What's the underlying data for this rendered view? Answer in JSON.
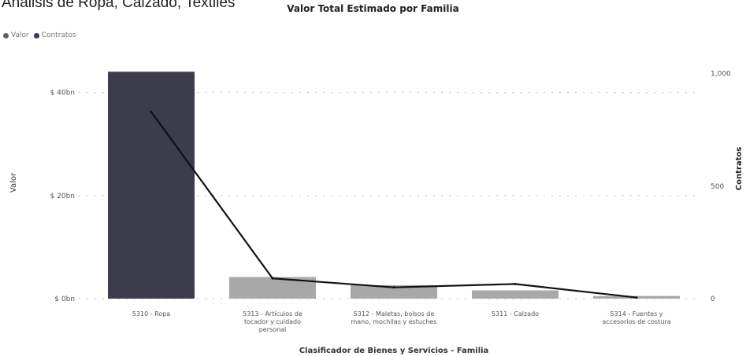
{
  "page": {
    "header_text": "Análisis de Ropa, Calzado, Textiles"
  },
  "legend": [
    {
      "label": "Valor",
      "color": "#5f5f5f"
    },
    {
      "label": "Contratos",
      "color": "#3a3a56"
    }
  ],
  "colors": {
    "bar_main": "#3c3c4c",
    "bar_other": "#a8a8a8",
    "line": "#111111",
    "grid": "#bdbdbd",
    "axis_text": "#555555"
  },
  "chart_data": {
    "type": "bar",
    "title": "Valor Total Estimado por Familia",
    "xlabel": "Clasificador de Bienes y Servicios - Familia",
    "ylabel": "Valor",
    "y2label": "Contratos",
    "categories": [
      [
        "5310 - Ropa"
      ],
      [
        "5313 - Artículos de",
        "tocador y cuidado",
        "personal"
      ],
      [
        "5312 - Maletas, bolsos de",
        "mano, mochilas y estuches"
      ],
      [
        "5311 - Calzado"
      ],
      [
        "5314 - Fuentes y",
        "accesorios de costura"
      ]
    ],
    "series": [
      {
        "name": "Valor",
        "type": "bar",
        "axis": "left",
        "values": [
          44,
          4.2,
          2.6,
          1.6,
          0.5
        ]
      },
      {
        "name": "Contratos",
        "type": "line",
        "axis": "right",
        "values": [
          830,
          90,
          50,
          65,
          5
        ]
      }
    ],
    "ylim": [
      0,
      48
    ],
    "y2lim": [
      0,
      1100
    ],
    "yticks": [
      {
        "value": 0,
        "label": "$ 0bn"
      },
      {
        "value": 20,
        "label": "$ 20bn"
      },
      {
        "value": 40,
        "label": "$ 40bn"
      }
    ],
    "y2ticks": [
      {
        "value": 0,
        "label": "0"
      },
      {
        "value": 500,
        "label": "500"
      },
      {
        "value": 1000,
        "label": "1,000"
      }
    ],
    "grid": true,
    "legend_position": "top-left"
  }
}
